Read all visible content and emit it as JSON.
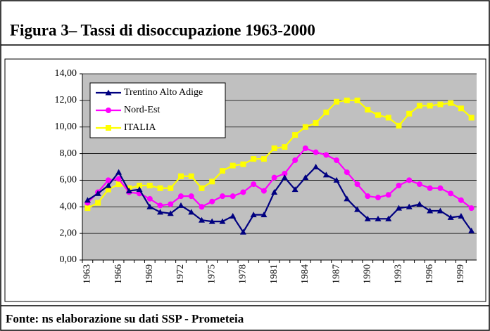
{
  "chart_data": {
    "type": "line",
    "title": "Figura 3– Tassi di disoccupazione 1963-2000",
    "source": "Fonte: ns elaborazione su dati SSP - Prometeia",
    "categories": [
      "1963",
      null,
      null,
      "1966",
      null,
      null,
      "1969",
      null,
      null,
      "1972",
      null,
      null,
      "1975",
      null,
      null,
      "1978",
      null,
      null,
      "1981",
      null,
      null,
      "1984",
      null,
      null,
      "1987",
      null,
      null,
      "1990",
      null,
      null,
      "1993",
      null,
      null,
      "1996",
      null,
      null,
      "1999",
      null
    ],
    "series": [
      {
        "name": "Trentino Alto Adige",
        "color": "#000080",
        "marker": "triangle",
        "values": [
          4.5,
          5.0,
          5.6,
          6.6,
          5.2,
          5.3,
          4.0,
          3.6,
          3.5,
          4.1,
          3.6,
          3.0,
          2.9,
          2.9,
          3.3,
          2.1,
          3.4,
          3.4,
          5.1,
          6.2,
          5.3,
          6.2,
          7.0,
          6.4,
          6.0,
          4.6,
          3.8,
          3.1,
          3.1,
          3.1,
          3.9,
          4.0,
          4.2,
          3.7,
          3.7,
          3.2,
          3.3,
          2.2
        ]
      },
      {
        "name": "Nord-Est",
        "color": "#ff00ff",
        "marker": "circle",
        "values": [
          4.3,
          5.1,
          6.0,
          6.1,
          5.1,
          5.0,
          4.6,
          4.1,
          4.2,
          4.8,
          4.8,
          4.0,
          4.4,
          4.8,
          4.8,
          5.1,
          5.7,
          5.2,
          6.2,
          6.5,
          7.5,
          8.4,
          8.1,
          7.9,
          7.5,
          6.6,
          5.7,
          4.8,
          4.7,
          4.9,
          5.6,
          6.0,
          5.7,
          5.4,
          5.4,
          5.0,
          4.5,
          3.9
        ]
      },
      {
        "name": "ITALIA",
        "color": "#ffff00",
        "marker": "square",
        "values": [
          3.9,
          4.3,
          5.3,
          5.7,
          5.4,
          5.6,
          5.6,
          5.4,
          5.4,
          6.3,
          6.3,
          5.4,
          5.9,
          6.7,
          7.1,
          7.2,
          7.6,
          7.6,
          8.4,
          8.5,
          9.4,
          10.0,
          10.3,
          11.1,
          11.9,
          12.0,
          12.0,
          11.3,
          10.9,
          10.7,
          10.1,
          11.0,
          11.6,
          11.6,
          11.7,
          11.8,
          11.4,
          10.7
        ]
      }
    ],
    "ylim": [
      0,
      14
    ],
    "yticks": [
      {
        "value": 0,
        "label": "0,00"
      },
      {
        "value": 2,
        "label": "2,00"
      },
      {
        "value": 4,
        "label": "4,00"
      },
      {
        "value": 6,
        "label": "6,00"
      },
      {
        "value": 8,
        "label": "8,00"
      },
      {
        "value": 10,
        "label": "10,00"
      },
      {
        "value": 12,
        "label": "12,00"
      },
      {
        "value": 14,
        "label": "14,00"
      }
    ],
    "grid": true,
    "legend": "upper left",
    "plot_background": "#c0c0c0"
  }
}
